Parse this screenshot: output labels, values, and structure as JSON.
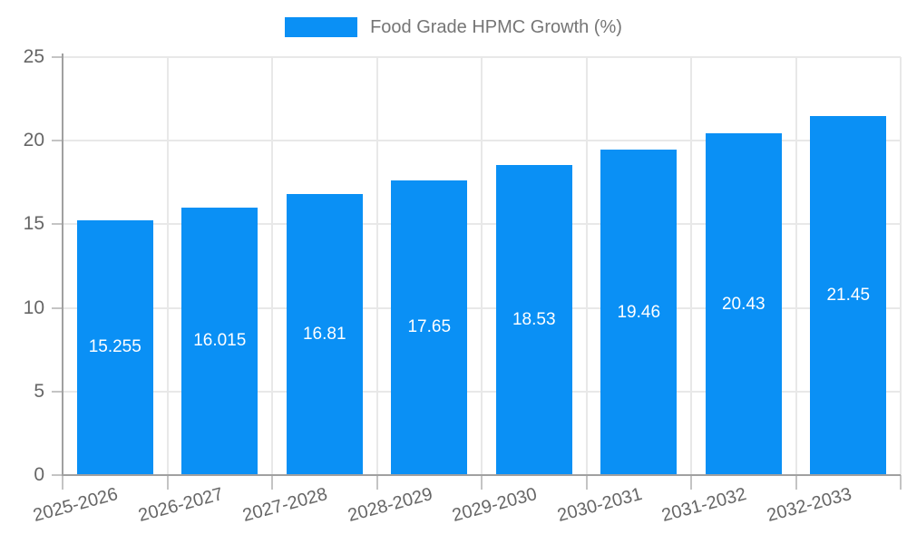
{
  "legend": {
    "label": "Food Grade HPMC Growth (%)"
  },
  "chart_data": {
    "type": "bar",
    "title": "",
    "xlabel": "",
    "ylabel": "",
    "categories": [
      "2025-2026",
      "2026-2027",
      "2027-2028",
      "2028-2029",
      "2029-2030",
      "2030-2031",
      "2031-2032",
      "2032-2033"
    ],
    "series": [
      {
        "name": "Food Grade HPMC Growth (%)",
        "values": [
          15.255,
          16.015,
          16.81,
          17.65,
          18.53,
          19.46,
          20.43,
          21.45
        ]
      }
    ],
    "value_labels": [
      "15.255",
      "16.015",
      "16.81",
      "17.65",
      "18.53",
      "19.46",
      "20.43",
      "21.45"
    ],
    "ylim": [
      0,
      25
    ],
    "yticks": [
      0,
      5,
      10,
      15,
      20,
      25
    ],
    "grid": true,
    "legend_position": "top-center",
    "x_tick_rotation_deg": -15,
    "colors": {
      "bar": "#0a90f5",
      "grid": "#e8e8e8",
      "axis": "#a0a0a0",
      "tick_mark": "#c4c4c4",
      "tick_label": "#666666",
      "legend_text": "#757575",
      "value_label": "#ffffff"
    }
  }
}
